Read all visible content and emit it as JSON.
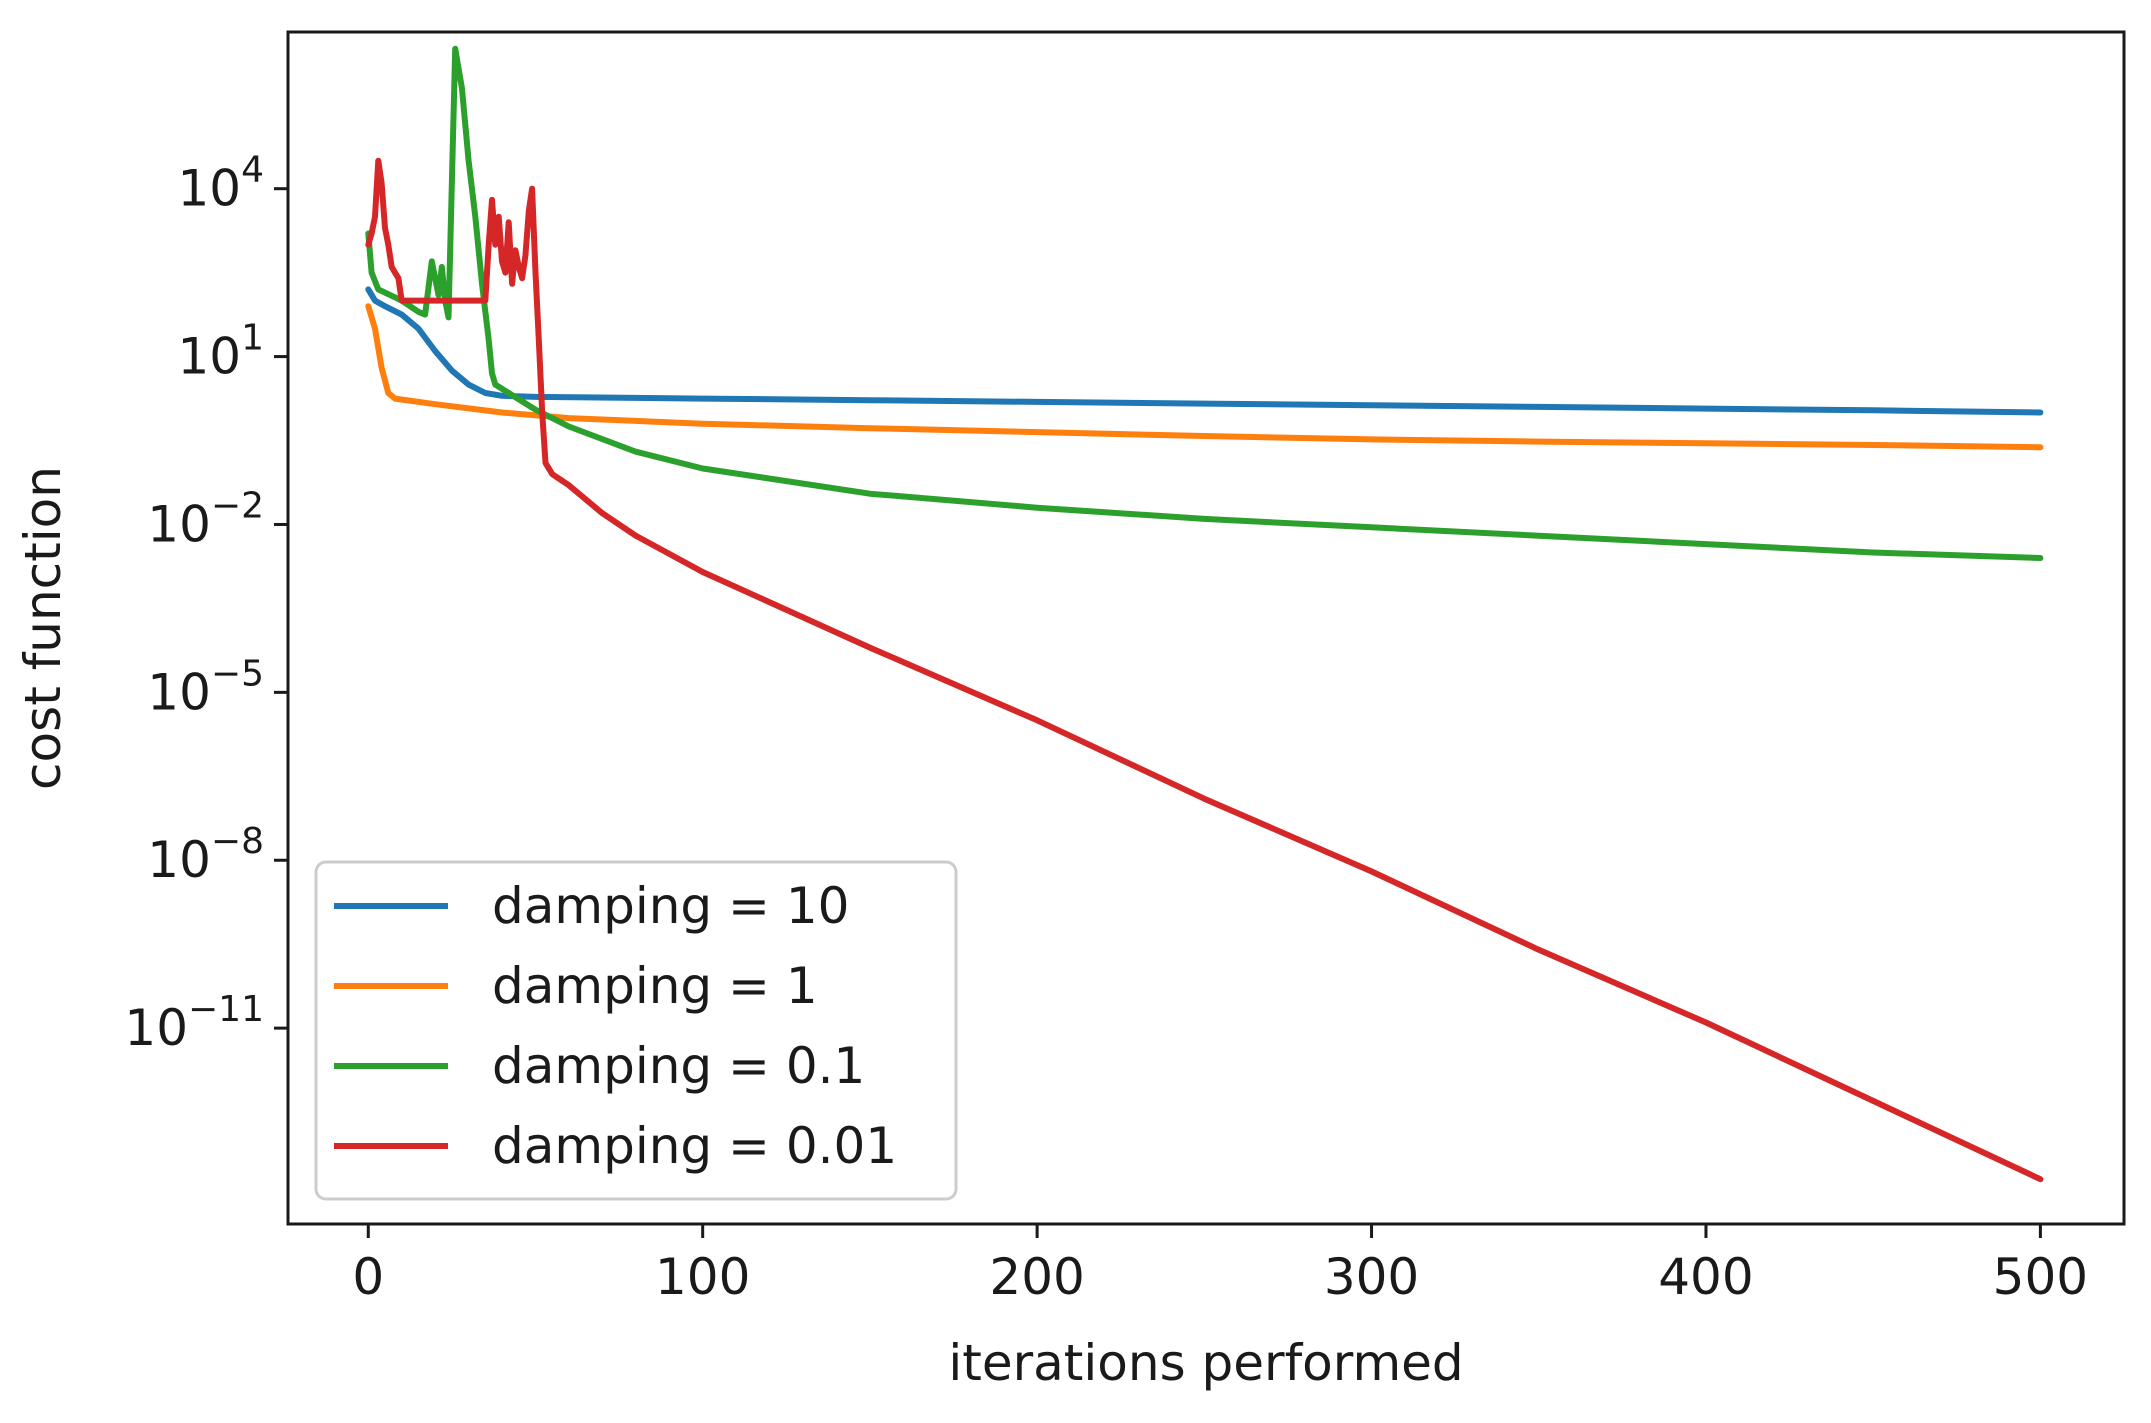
{
  "chart_data": {
    "type": "line",
    "title": "",
    "xlabel": "iterations performed",
    "ylabel": "cost function",
    "xscale": "linear",
    "yscale": "log",
    "xlim": [
      -24,
      525
    ],
    "ylim_log10": [
      -14.5,
      6.8
    ],
    "x_ticks": [
      {
        "value": 0,
        "label": "0"
      },
      {
        "value": 100,
        "label": "100"
      },
      {
        "value": 200,
        "label": "200"
      },
      {
        "value": 300,
        "label": "300"
      },
      {
        "value": 400,
        "label": "400"
      },
      {
        "value": 500,
        "label": "500"
      }
    ],
    "y_ticks": [
      {
        "exp": 4,
        "base": "10",
        "sup": "4"
      },
      {
        "exp": 1,
        "base": "10",
        "sup": "1"
      },
      {
        "exp": -2,
        "base": "10",
        "sup": "−2"
      },
      {
        "exp": -5,
        "base": "10",
        "sup": "−5"
      },
      {
        "exp": -8,
        "base": "10",
        "sup": "−8"
      },
      {
        "exp": -11,
        "base": "10",
        "sup": "−11"
      }
    ],
    "legend_position": "lower-left",
    "grid": false,
    "series": [
      {
        "name": "damping = 10",
        "color": "#1f77b4",
        "points_log10": [
          [
            0,
            2.2
          ],
          [
            2,
            2.0
          ],
          [
            5,
            1.9
          ],
          [
            10,
            1.75
          ],
          [
            15,
            1.5
          ],
          [
            20,
            1.1
          ],
          [
            25,
            0.75
          ],
          [
            30,
            0.5
          ],
          [
            35,
            0.35
          ],
          [
            40,
            0.3
          ],
          [
            50,
            0.28
          ],
          [
            100,
            0.25
          ],
          [
            150,
            0.22
          ],
          [
            200,
            0.19
          ],
          [
            250,
            0.16
          ],
          [
            300,
            0.13
          ],
          [
            350,
            0.1
          ],
          [
            400,
            0.07
          ],
          [
            450,
            0.04
          ],
          [
            500,
            0.0
          ]
        ]
      },
      {
        "name": "damping = 1",
        "color": "#ff7f0e",
        "points_log10": [
          [
            0,
            1.9
          ],
          [
            2,
            1.5
          ],
          [
            4,
            0.8
          ],
          [
            6,
            0.35
          ],
          [
            8,
            0.25
          ],
          [
            20,
            0.15
          ],
          [
            40,
            0.0
          ],
          [
            60,
            -0.1
          ],
          [
            100,
            -0.2
          ],
          [
            150,
            -0.28
          ],
          [
            200,
            -0.35
          ],
          [
            250,
            -0.42
          ],
          [
            300,
            -0.48
          ],
          [
            350,
            -0.52
          ],
          [
            400,
            -0.55
          ],
          [
            450,
            -0.58
          ],
          [
            500,
            -0.62
          ]
        ]
      },
      {
        "name": "damping = 0.1",
        "color": "#2ca02c",
        "points_log10": [
          [
            0,
            3.2
          ],
          [
            1,
            2.5
          ],
          [
            3,
            2.2
          ],
          [
            10,
            2.0
          ],
          [
            15,
            1.8
          ],
          [
            17,
            1.75
          ],
          [
            19,
            2.7
          ],
          [
            21,
            2.1
          ],
          [
            22,
            2.6
          ],
          [
            23,
            2.0
          ],
          [
            24,
            1.7
          ],
          [
            26,
            6.5
          ],
          [
            28,
            5.8
          ],
          [
            30,
            4.5
          ],
          [
            32,
            3.5
          ],
          [
            34,
            2.3
          ],
          [
            36,
            1.3
          ],
          [
            37,
            0.7
          ],
          [
            38,
            0.5
          ],
          [
            50,
            0.05
          ],
          [
            60,
            -0.25
          ],
          [
            80,
            -0.7
          ],
          [
            100,
            -1.0
          ],
          [
            150,
            -1.45
          ],
          [
            200,
            -1.7
          ],
          [
            250,
            -1.9
          ],
          [
            300,
            -2.05
          ],
          [
            350,
            -2.2
          ],
          [
            400,
            -2.35
          ],
          [
            450,
            -2.5
          ],
          [
            500,
            -2.6
          ]
        ]
      },
      {
        "name": "damping = 0.01",
        "color": "#d62728",
        "points_log10": [
          [
            0,
            3.0
          ],
          [
            1,
            3.2
          ],
          [
            2,
            3.5
          ],
          [
            3,
            4.5
          ],
          [
            4,
            4.1
          ],
          [
            5,
            3.3
          ],
          [
            6,
            3.0
          ],
          [
            7,
            2.6
          ],
          [
            8,
            2.5
          ],
          [
            9,
            2.4
          ],
          [
            10,
            2.0
          ],
          [
            34,
            2.0
          ],
          [
            35,
            2.0
          ],
          [
            36,
            3.0
          ],
          [
            37,
            3.8
          ],
          [
            38,
            3.0
          ],
          [
            39,
            3.5
          ],
          [
            40,
            2.7
          ],
          [
            41,
            2.5
          ],
          [
            42,
            3.4
          ],
          [
            43,
            2.3
          ],
          [
            44,
            2.9
          ],
          [
            45,
            2.6
          ],
          [
            46,
            2.4
          ],
          [
            47,
            2.8
          ],
          [
            48,
            3.6
          ],
          [
            49,
            4.0
          ],
          [
            50,
            2.5
          ],
          [
            51,
            1.3
          ],
          [
            52,
            0.0
          ],
          [
            53,
            -0.9
          ],
          [
            55,
            -1.1
          ],
          [
            60,
            -1.3
          ],
          [
            70,
            -1.8
          ],
          [
            80,
            -2.2
          ],
          [
            100,
            -2.85
          ],
          [
            150,
            -4.2
          ],
          [
            200,
            -5.5
          ],
          [
            250,
            -6.9
          ],
          [
            300,
            -8.2
          ],
          [
            350,
            -9.6
          ],
          [
            400,
            -10.9
          ],
          [
            450,
            -12.3
          ],
          [
            500,
            -13.7
          ]
        ]
      }
    ]
  }
}
